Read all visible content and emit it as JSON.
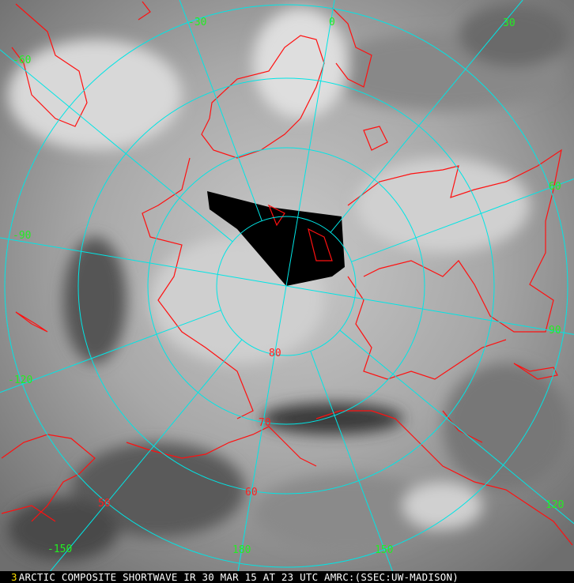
{
  "caption": {
    "frame_number": "3",
    "text": "ARCTIC COMPOSITE SHORTWAVE IR 30 MAR 15 AT 23 UTC AMRC:(SSEC:UW-MADISON)"
  },
  "colors": {
    "grid": "#00e5e5",
    "coastline": "#ff1010",
    "longitude_labels": "#22ee22",
    "latitude_labels": "#ff2020",
    "frame_number": "#ffe000"
  },
  "map": {
    "projection": "polar-stereographic-north",
    "latitude_circles": [
      80,
      70,
      60,
      50
    ],
    "longitude_meridians": [
      -150,
      -120,
      -90,
      -60,
      -30,
      0,
      30,
      60,
      90,
      120,
      150,
      180
    ],
    "longitude_labels": [
      "-30",
      "0",
      "30",
      "-60",
      "60",
      "-90",
      "90",
      "-120",
      "120",
      "-150",
      "180",
      "150"
    ],
    "latitude_labels": [
      "80",
      "70",
      "60",
      "50"
    ]
  }
}
